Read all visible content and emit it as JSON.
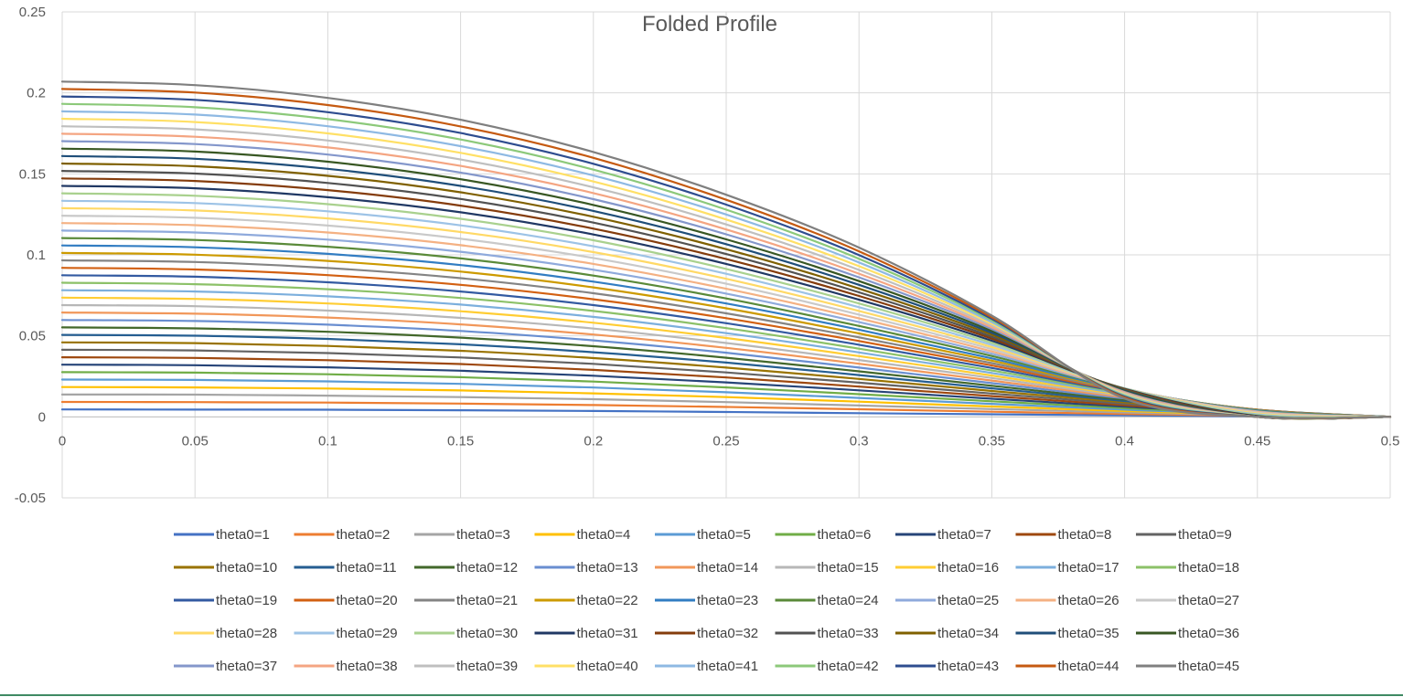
{
  "chart_data": {
    "type": "line",
    "title": "Folded Profile",
    "xlabel": "",
    "ylabel": "",
    "xlim": [
      0,
      0.5
    ],
    "ylim": [
      -0.05,
      0.25
    ],
    "x_ticks": [
      {
        "value": 0,
        "label": "0"
      },
      {
        "value": 0.05,
        "label": "0.05"
      },
      {
        "value": 0.1,
        "label": "0.1"
      },
      {
        "value": 0.15,
        "label": "0.15"
      },
      {
        "value": 0.2,
        "label": "0.2"
      },
      {
        "value": 0.25,
        "label": "0.25"
      },
      {
        "value": 0.3,
        "label": "0.3"
      },
      {
        "value": 0.35,
        "label": "0.35"
      },
      {
        "value": 0.4,
        "label": "0.4"
      },
      {
        "value": 0.45,
        "label": "0.45"
      },
      {
        "value": 0.5,
        "label": "0.5"
      }
    ],
    "y_ticks": [
      {
        "value": 0.25,
        "label": "0.25"
      },
      {
        "value": 0.2,
        "label": "0.2"
      },
      {
        "value": 0.15,
        "label": "0.15"
      },
      {
        "value": 0.1,
        "label": "0.1"
      },
      {
        "value": 0.05,
        "label": "0.05"
      },
      {
        "value": 0,
        "label": "0"
      },
      {
        "value": -0.05,
        "label": "-0.05"
      }
    ],
    "grid": true,
    "legend_position": "bottom",
    "x": [
      0,
      0.05,
      0.1,
      0.15,
      0.2,
      0.25,
      0.3,
      0.35,
      0.4,
      0.45,
      0.5
    ],
    "series": [
      {
        "name": "theta0=1",
        "color": "#4472C4",
        "values": [
          0.0046,
          0.0045,
          0.0044,
          0.0041,
          0.0036,
          0.003,
          0.0023,
          0.0016,
          0.0009,
          0.0003,
          0
        ]
      },
      {
        "name": "theta0=2",
        "color": "#ED7D31",
        "values": [
          0.0092,
          0.0091,
          0.0088,
          0.0082,
          0.0073,
          0.0061,
          0.0047,
          0.0032,
          0.0018,
          0.0006,
          0
        ]
      },
      {
        "name": "theta0=3",
        "color": "#A5A5A5",
        "values": [
          0.0138,
          0.0137,
          0.0131,
          0.0122,
          0.0109,
          0.0091,
          0.007,
          0.0048,
          0.0027,
          0.0009,
          0
        ]
      },
      {
        "name": "theta0=4",
        "color": "#FFC000",
        "values": [
          0.0184,
          0.0182,
          0.0175,
          0.0163,
          0.0145,
          0.0122,
          0.0094,
          0.0064,
          0.0036,
          0.0012,
          0
        ]
      },
      {
        "name": "theta0=5",
        "color": "#5B9BD5",
        "values": [
          0.023,
          0.0228,
          0.0219,
          0.0204,
          0.0181,
          0.0152,
          0.0117,
          0.008,
          0.0045,
          0.0015,
          0
        ]
      },
      {
        "name": "theta0=6",
        "color": "#70AD47",
        "values": [
          0.0276,
          0.0273,
          0.0263,
          0.0245,
          0.0218,
          0.0182,
          0.014,
          0.0096,
          0.0054,
          0.0018,
          0
        ]
      },
      {
        "name": "theta0=7",
        "color": "#264478",
        "values": [
          0.0322,
          0.0319,
          0.0306,
          0.0285,
          0.0254,
          0.0213,
          0.0164,
          0.0112,
          0.0063,
          0.0021,
          0
        ]
      },
      {
        "name": "theta0=8",
        "color": "#9E480E",
        "values": [
          0.0368,
          0.0364,
          0.035,
          0.0326,
          0.029,
          0.0243,
          0.0187,
          0.0128,
          0.0072,
          0.0024,
          0
        ]
      },
      {
        "name": "theta0=9",
        "color": "#636363",
        "values": [
          0.0414,
          0.041,
          0.0394,
          0.0367,
          0.0327,
          0.0274,
          0.0211,
          0.0144,
          0.0081,
          0.0027,
          0
        ]
      },
      {
        "name": "theta0=10",
        "color": "#997300",
        "values": [
          0.046,
          0.0455,
          0.0438,
          0.0408,
          0.0363,
          0.0304,
          0.0234,
          0.016,
          0.009,
          0.003,
          0
        ]
      },
      {
        "name": "theta0=11",
        "color": "#255E91",
        "values": [
          0.0506,
          0.0501,
          0.0481,
          0.0448,
          0.0399,
          0.0335,
          0.0258,
          0.0176,
          0.0098,
          0.0033,
          0
        ]
      },
      {
        "name": "theta0=12",
        "color": "#43682B",
        "values": [
          0.0552,
          0.0546,
          0.0525,
          0.0489,
          0.0436,
          0.0365,
          0.0281,
          0.0192,
          0.0106,
          0.0035,
          0
        ]
      },
      {
        "name": "theta0=13",
        "color": "#698ED0",
        "values": [
          0.0598,
          0.0592,
          0.0569,
          0.053,
          0.0472,
          0.0396,
          0.0304,
          0.0208,
          0.0114,
          0.0037,
          0
        ]
      },
      {
        "name": "theta0=14",
        "color": "#F1975A",
        "values": [
          0.0644,
          0.0637,
          0.0613,
          0.0571,
          0.0508,
          0.0426,
          0.0328,
          0.0224,
          0.0121,
          0.0039,
          0
        ]
      },
      {
        "name": "theta0=15",
        "color": "#B7B7B7",
        "values": [
          0.069,
          0.0683,
          0.0656,
          0.0611,
          0.0545,
          0.0456,
          0.0351,
          0.024,
          0.0128,
          0.0041,
          0
        ]
      },
      {
        "name": "theta0=16",
        "color": "#FFCD33",
        "values": [
          0.0736,
          0.0728,
          0.07,
          0.0652,
          0.0581,
          0.0487,
          0.0375,
          0.0255,
          0.0135,
          0.0042,
          0
        ]
      },
      {
        "name": "theta0=17",
        "color": "#7CAFDD",
        "values": [
          0.0782,
          0.0774,
          0.0744,
          0.0693,
          0.0617,
          0.0517,
          0.0398,
          0.0271,
          0.0141,
          0.0043,
          0
        ]
      },
      {
        "name": "theta0=18",
        "color": "#8CC168",
        "values": [
          0.0828,
          0.0819,
          0.0788,
          0.0734,
          0.0654,
          0.0548,
          0.0421,
          0.0286,
          0.0147,
          0.0044,
          0
        ]
      },
      {
        "name": "theta0=19",
        "color": "#335AA1",
        "values": [
          0.0874,
          0.0865,
          0.0831,
          0.0774,
          0.069,
          0.0578,
          0.0445,
          0.0302,
          0.0152,
          0.0044,
          0
        ]
      },
      {
        "name": "theta0=20",
        "color": "#D26012",
        "values": [
          0.092,
          0.091,
          0.0875,
          0.0815,
          0.0726,
          0.0609,
          0.0468,
          0.0317,
          0.0157,
          0.0044,
          0
        ]
      },
      {
        "name": "theta0=21",
        "color": "#848484",
        "values": [
          0.0966,
          0.0956,
          0.0919,
          0.0856,
          0.0763,
          0.0639,
          0.0491,
          0.0332,
          0.0161,
          0.0043,
          0
        ]
      },
      {
        "name": "theta0=22",
        "color": "#CC9A00",
        "values": [
          0.1012,
          0.1001,
          0.0963,
          0.0897,
          0.0799,
          0.067,
          0.0515,
          0.0347,
          0.0165,
          0.0042,
          0
        ]
      },
      {
        "name": "theta0=23",
        "color": "#327DC2",
        "values": [
          0.1058,
          0.1047,
          0.1006,
          0.0937,
          0.0835,
          0.07,
          0.0538,
          0.0361,
          0.0168,
          0.004,
          0
        ]
      },
      {
        "name": "theta0=24",
        "color": "#5A8A39",
        "values": [
          0.1104,
          0.1092,
          0.105,
          0.0978,
          0.0872,
          0.0731,
          0.0561,
          0.0376,
          0.0171,
          0.0037,
          0
        ]
      },
      {
        "name": "theta0=25",
        "color": "#8FAADC",
        "values": [
          0.115,
          0.1138,
          0.1094,
          0.1019,
          0.0908,
          0.0761,
          0.0585,
          0.039,
          0.0173,
          0.0034,
          0
        ]
      },
      {
        "name": "theta0=26",
        "color": "#F4B183",
        "values": [
          0.1196,
          0.1183,
          0.1138,
          0.106,
          0.0944,
          0.0791,
          0.0608,
          0.0404,
          0.0175,
          0.003,
          0
        ]
      },
      {
        "name": "theta0=27",
        "color": "#C9C9C9",
        "values": [
          0.1242,
          0.1229,
          0.1181,
          0.11,
          0.0981,
          0.0822,
          0.0631,
          0.0418,
          0.0176,
          0.0026,
          0
        ]
      },
      {
        "name": "theta0=28",
        "color": "#FFD966",
        "values": [
          0.1288,
          0.1274,
          0.1225,
          0.1141,
          0.1017,
          0.0852,
          0.0654,
          0.0431,
          0.0176,
          0.0021,
          0
        ]
      },
      {
        "name": "theta0=29",
        "color": "#9DC3E6",
        "values": [
          0.1334,
          0.132,
          0.1269,
          0.1182,
          0.1053,
          0.0883,
          0.0677,
          0.0444,
          0.0176,
          0.0016,
          0
        ]
      },
      {
        "name": "theta0=30",
        "color": "#A9D18E",
        "values": [
          0.138,
          0.1365,
          0.1313,
          0.1223,
          0.109,
          0.0913,
          0.07,
          0.0457,
          0.0175,
          0.0011,
          0
        ]
      },
      {
        "name": "theta0=31",
        "color": "#203864",
        "values": [
          0.1426,
          0.1411,
          0.1356,
          0.1263,
          0.1126,
          0.0944,
          0.0723,
          0.047,
          0.0173,
          0.0006,
          0
        ]
      },
      {
        "name": "theta0=32",
        "color": "#843C0C",
        "values": [
          0.1472,
          0.1456,
          0.14,
          0.1304,
          0.1162,
          0.0974,
          0.0746,
          0.0483,
          0.0171,
          0.0002,
          0
        ]
      },
      {
        "name": "theta0=33",
        "color": "#525252",
        "values": [
          0.1518,
          0.1502,
          0.1444,
          0.1345,
          0.1199,
          0.1005,
          0.0769,
          0.0495,
          0.0168,
          0,
          0
        ]
      },
      {
        "name": "theta0=34",
        "color": "#7F6000",
        "values": [
          0.1564,
          0.1547,
          0.1488,
          0.1386,
          0.1235,
          0.1035,
          0.0792,
          0.0507,
          0.0165,
          0,
          0
        ]
      },
      {
        "name": "theta0=35",
        "color": "#1F4E79",
        "values": [
          0.161,
          0.1593,
          0.1531,
          0.1426,
          0.1271,
          0.1066,
          0.0815,
          0.0519,
          0.0162,
          0,
          0
        ]
      },
      {
        "name": "theta0=36",
        "color": "#385723",
        "values": [
          0.1656,
          0.1638,
          0.1575,
          0.1467,
          0.1308,
          0.1096,
          0.0838,
          0.0531,
          0.0158,
          0,
          0
        ]
      },
      {
        "name": "theta0=37",
        "color": "#8497CB",
        "values": [
          0.1702,
          0.1684,
          0.1619,
          0.1508,
          0.1344,
          0.1127,
          0.0861,
          0.0542,
          0.0154,
          0,
          0
        ]
      },
      {
        "name": "theta0=38",
        "color": "#F4A582",
        "values": [
          0.1748,
          0.1729,
          0.1663,
          0.1549,
          0.1381,
          0.1157,
          0.0884,
          0.0553,
          0.015,
          0,
          0
        ]
      },
      {
        "name": "theta0=39",
        "color": "#BFBFBF",
        "values": [
          0.1794,
          0.1775,
          0.1706,
          0.1589,
          0.1417,
          0.1188,
          0.0907,
          0.0564,
          0.0145,
          0,
          0
        ]
      },
      {
        "name": "theta0=40",
        "color": "#FFE066",
        "values": [
          0.184,
          0.182,
          0.175,
          0.163,
          0.1453,
          0.1218,
          0.093,
          0.0575,
          0.014,
          0,
          0
        ]
      },
      {
        "name": "theta0=41",
        "color": "#8EB9E3",
        "values": [
          0.1886,
          0.1866,
          0.1794,
          0.1671,
          0.149,
          0.1249,
          0.0953,
          0.0585,
          0.0135,
          0,
          0
        ]
      },
      {
        "name": "theta0=42",
        "color": "#8CC97A",
        "values": [
          0.1932,
          0.1911,
          0.1838,
          0.1712,
          0.1526,
          0.1279,
          0.0976,
          0.0595,
          0.013,
          0,
          0
        ]
      },
      {
        "name": "theta0=43",
        "color": "#2E4D8F",
        "values": [
          0.1978,
          0.1957,
          0.1881,
          0.1752,
          0.1562,
          0.131,
          0.0999,
          0.0605,
          0.0125,
          0,
          0
        ]
      },
      {
        "name": "theta0=44",
        "color": "#C55A11",
        "values": [
          0.2024,
          0.2002,
          0.1925,
          0.1793,
          0.1599,
          0.134,
          0.1022,
          0.0615,
          0.0119,
          0,
          0
        ]
      },
      {
        "name": "theta0=45",
        "color": "#7F7F7F",
        "values": [
          0.207,
          0.2048,
          0.1969,
          0.1834,
          0.1635,
          0.1371,
          0.1045,
          0.0625,
          0.0113,
          0,
          0
        ]
      }
    ]
  }
}
